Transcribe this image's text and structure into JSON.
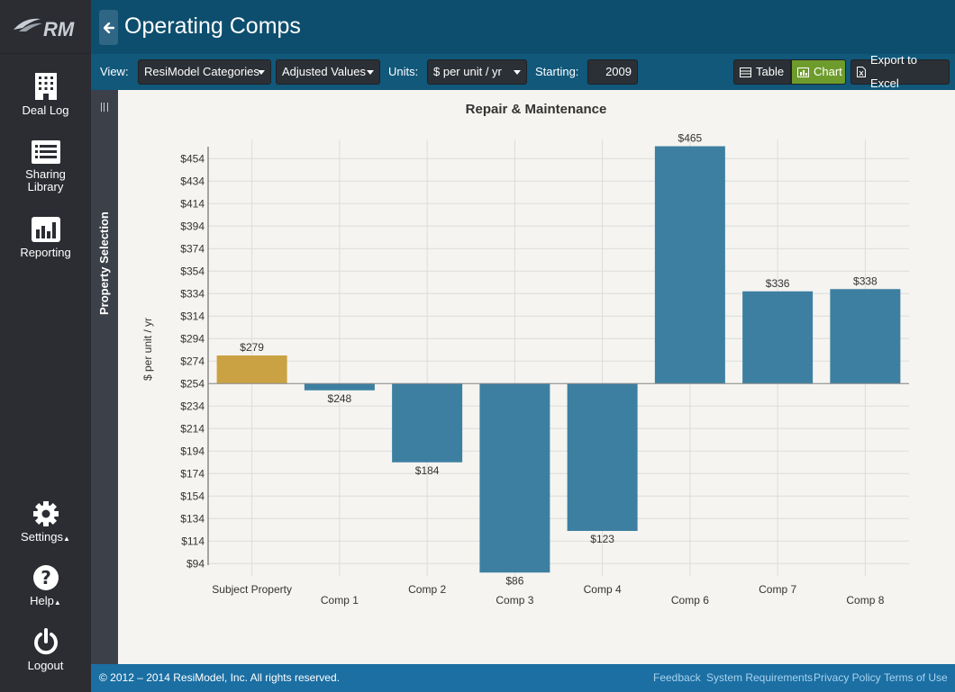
{
  "app": {
    "logo_text": "RM",
    "page_title": "Operating Comps"
  },
  "sidebar": {
    "items": [
      {
        "label": "Deal Log",
        "icon": "building-icon"
      },
      {
        "label": "Sharing Library",
        "icon": "list-icon"
      },
      {
        "label": "Reporting",
        "icon": "bar-chart-icon"
      }
    ],
    "bottom": [
      {
        "label": "Settings",
        "icon": "gear-icon",
        "caret": "▲"
      },
      {
        "label": "Help",
        "icon": "help-icon",
        "caret": "▲"
      },
      {
        "label": "Logout",
        "icon": "power-icon",
        "caret": ""
      }
    ]
  },
  "toolbar": {
    "view_label": "View:",
    "view_value": "ResiModel Categories",
    "values_value": "Adjusted Values",
    "units_label": "Units:",
    "units_value": "$ per unit / yr",
    "starting_label": "Starting:",
    "starting_value": "2009",
    "table_label": "Table",
    "chart_label": "Chart",
    "export_label": "Export to Excel"
  },
  "property_selection": {
    "label": "Property Selection"
  },
  "colors": {
    "subject": "#cba243",
    "comp": "#3d7fa1",
    "active_toggle": "#6e9c2c"
  },
  "chart_data": {
    "type": "bar",
    "title": "Repair & Maintenance",
    "ylabel": "$ per unit / yr",
    "xlabel": "",
    "baseline": 254,
    "ylim": [
      83,
      471
    ],
    "yticks": [
      94,
      114,
      134,
      154,
      174,
      194,
      214,
      234,
      254,
      274,
      294,
      314,
      334,
      354,
      374,
      394,
      414,
      434,
      454
    ],
    "ytick_labels": [
      "$94",
      "$114",
      "$134",
      "$154",
      "$174",
      "$194",
      "$214",
      "$234",
      "$254",
      "$274",
      "$294",
      "$314",
      "$334",
      "$354",
      "$374",
      "$394",
      "$414",
      "$434",
      "$454"
    ],
    "categories": [
      "Subject Property",
      "Comp 1",
      "Comp 2",
      "Comp 3",
      "Comp 4",
      "Comp 6",
      "Comp 7",
      "Comp 8"
    ],
    "values": [
      279,
      248,
      184,
      86,
      123,
      465,
      336,
      338
    ],
    "value_labels": [
      "$279",
      "$248",
      "$184",
      "$86",
      "$123",
      "$465",
      "$336",
      "$338"
    ],
    "highlight_index": 0,
    "grid": true
  },
  "footer": {
    "copyright": "© 2012 – 2014  ResiModel, Inc.   All rights reserved.",
    "links": [
      "Feedback",
      "System Requirements",
      "Privacy Policy",
      "Terms of Use"
    ]
  }
}
